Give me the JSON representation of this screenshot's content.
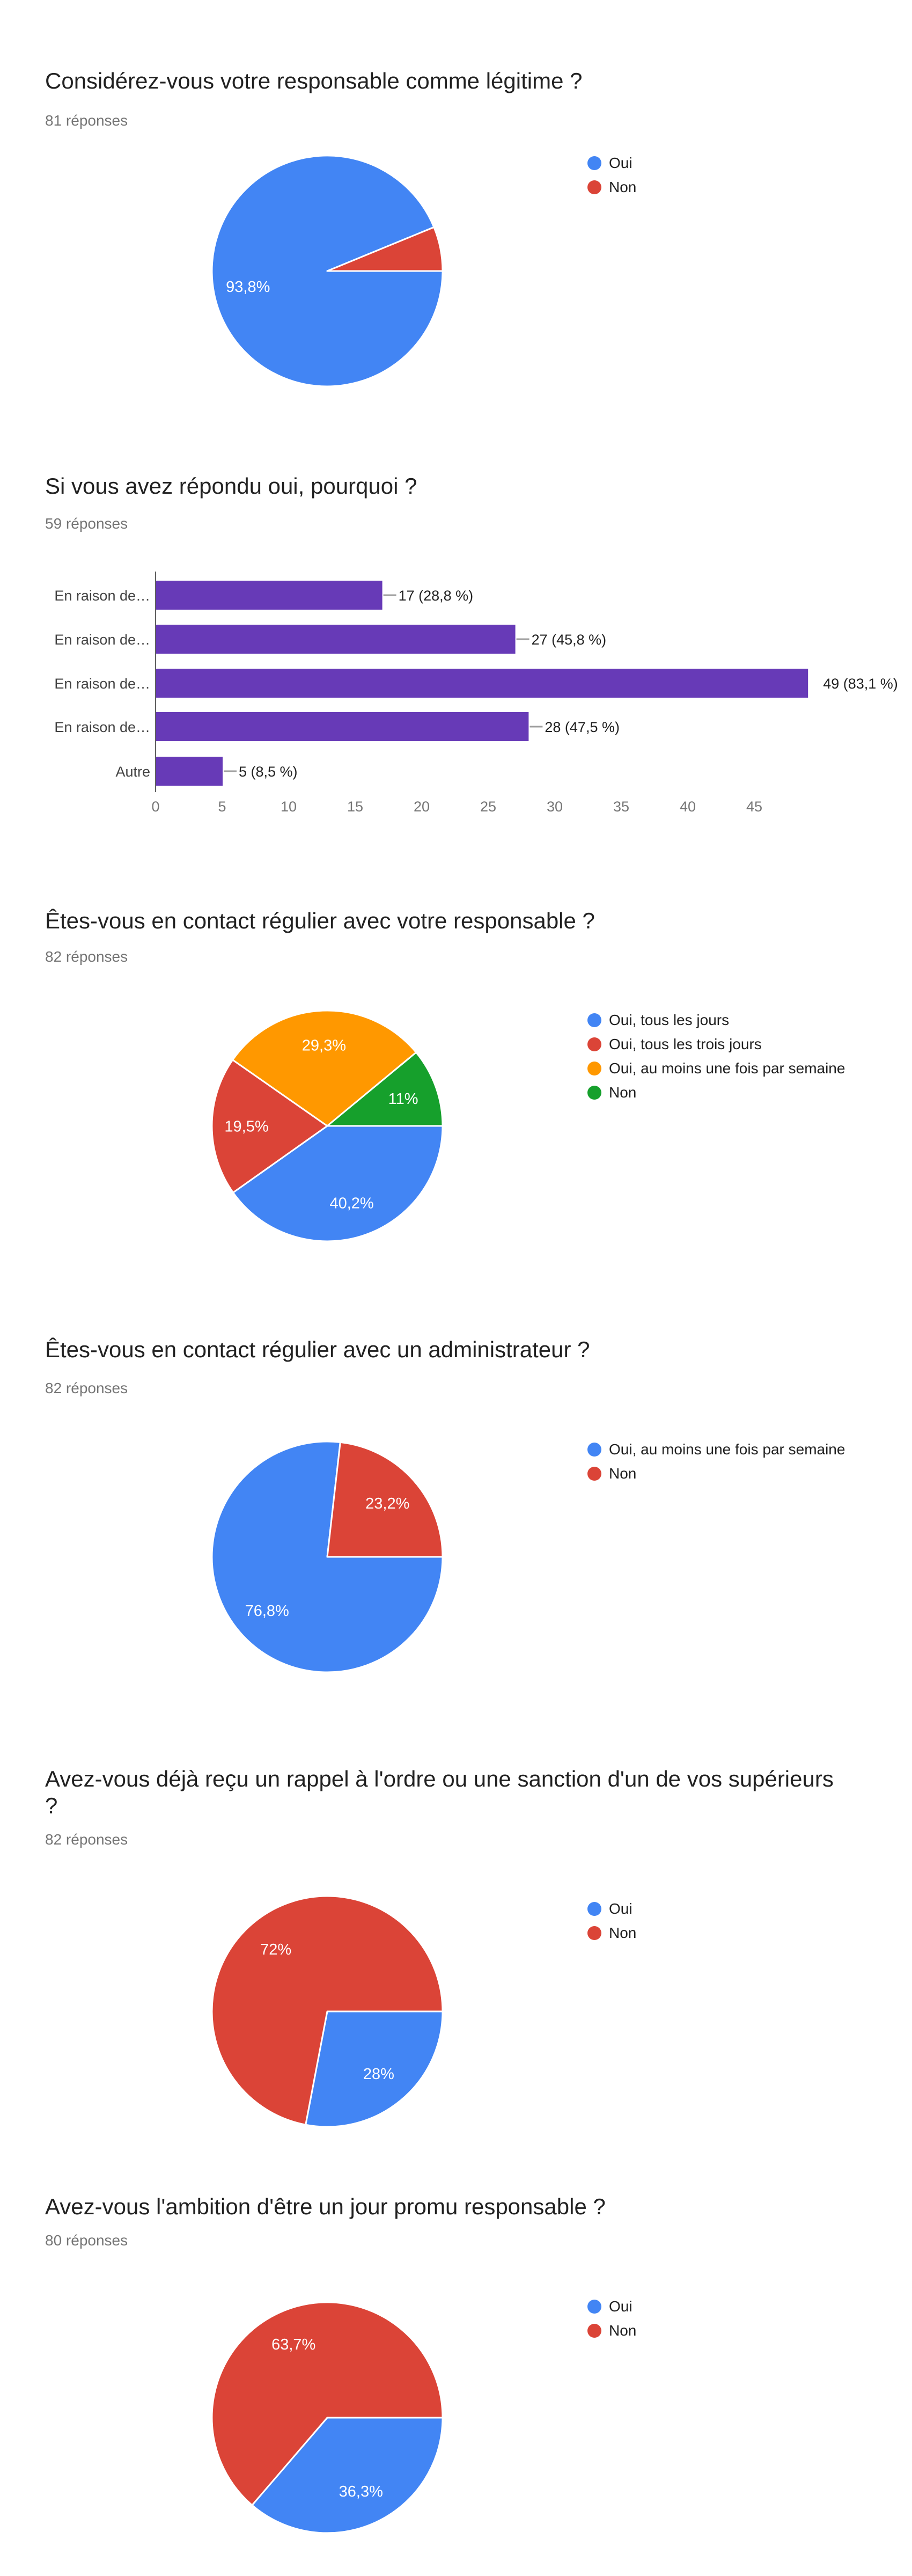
{
  "page": {
    "background": "#ffffff",
    "text_color": "#212121",
    "muted_color": "#757575"
  },
  "palette": {
    "blue": "#4285F4",
    "red": "#DB4437",
    "orange": "#FF9800",
    "green": "#16A02C",
    "purple": "#673AB7"
  },
  "chart_data": [
    {
      "type": "pie",
      "title": "Considérez-vous votre responsable comme légitime ?",
      "responses": "81 réponses",
      "legend_position": "right",
      "slices": [
        {
          "label": "Oui",
          "pct": 93.8,
          "display": "93,8%",
          "color": "#4285F4",
          "show_label": true
        },
        {
          "label": "Non",
          "pct": 6.2,
          "display": "6,2%",
          "color": "#DB4437",
          "show_label": false
        }
      ]
    },
    {
      "type": "bar",
      "title": "Si vous avez répondu oui, pourquoi ?",
      "responses": "59 réponses",
      "orientation": "horizontal",
      "categories": [
        "En raison de…",
        "En raison de…",
        "En raison de…",
        "En raison de…",
        "Autre"
      ],
      "values": [
        17,
        27,
        49,
        28,
        5
      ],
      "value_labels": [
        "17 (28,8 %)",
        "27 (45,8 %)",
        "49 (83,1 %)",
        "28 (47,5 %)",
        "5 (8,5 %)"
      ],
      "value_label_connectors": [
        true,
        true,
        false,
        true,
        true
      ],
      "xticks": [
        0,
        5,
        10,
        15,
        20,
        25,
        30,
        35,
        40,
        45
      ],
      "xlim": [
        0,
        49.5
      ],
      "grid": false,
      "bar_color": "#673AB7"
    },
    {
      "type": "pie",
      "title": "Êtes-vous en contact régulier avec votre responsable ?",
      "responses": "82 réponses",
      "legend_position": "right",
      "slices": [
        {
          "label": "Oui, tous les jours",
          "pct": 40.2,
          "display": "40,2%",
          "color": "#4285F4",
          "show_label": true
        },
        {
          "label": "Oui, tous les trois jours",
          "pct": 19.5,
          "display": "19,5%",
          "color": "#DB4437",
          "show_label": true
        },
        {
          "label": "Oui, au moins une fois par semaine",
          "pct": 29.3,
          "display": "29,3%",
          "color": "#FF9800",
          "show_label": true
        },
        {
          "label": "Non",
          "pct": 11.0,
          "display": "11%",
          "color": "#16A02C",
          "show_label": true
        }
      ]
    },
    {
      "type": "pie",
      "title": "Êtes-vous en contact régulier avec un administrateur ?",
      "responses": "82 réponses",
      "legend_position": "right",
      "slices": [
        {
          "label": "Oui, au moins une fois par semaine",
          "pct": 76.8,
          "display": "76,8%",
          "color": "#4285F4",
          "show_label": true
        },
        {
          "label": "Non",
          "pct": 23.2,
          "display": "23,2%",
          "color": "#DB4437",
          "show_label": true
        }
      ]
    },
    {
      "type": "pie",
      "title": "Avez-vous déjà reçu un rappel à l'ordre ou une sanction d'un de vos supérieurs ?",
      "responses": "82 réponses",
      "legend_position": "right",
      "slices": [
        {
          "label": "Oui",
          "pct": 28.0,
          "display": "28%",
          "color": "#4285F4",
          "show_label": true
        },
        {
          "label": "Non",
          "pct": 72.0,
          "display": "72%",
          "color": "#DB4437",
          "show_label": true
        }
      ]
    },
    {
      "type": "pie",
      "title": "Avez-vous l'ambition d'être un jour promu responsable ?",
      "responses": "80 réponses",
      "legend_position": "right",
      "slices": [
        {
          "label": "Oui",
          "pct": 36.3,
          "display": "36,3%",
          "color": "#4285F4",
          "show_label": true
        },
        {
          "label": "Non",
          "pct": 63.7,
          "display": "63,7%",
          "color": "#DB4437",
          "show_label": true
        }
      ]
    }
  ]
}
